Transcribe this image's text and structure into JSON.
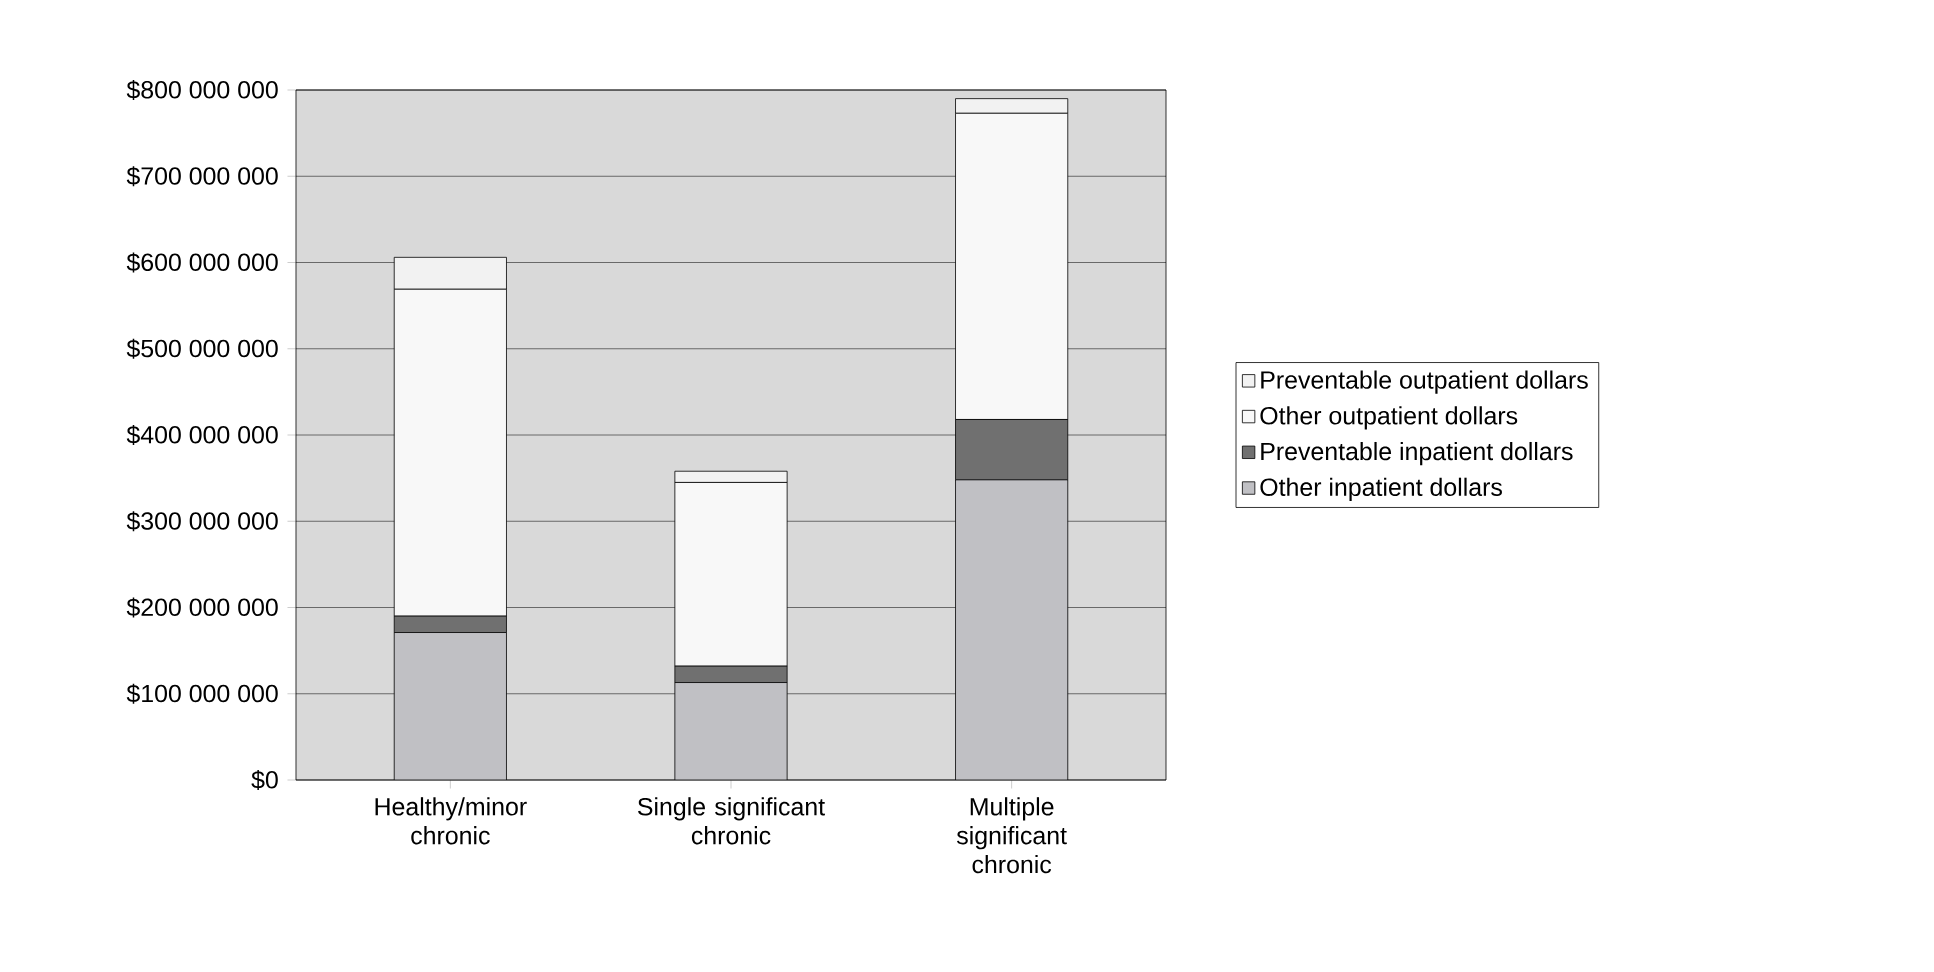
{
  "chart_data": {
    "type": "bar",
    "stacked": true,
    "grid": "y",
    "legend": "right",
    "categories": [
      "Healthy/minor chronic",
      "Single significant chronic",
      "Multiple significant chronic"
    ],
    "series": [
      {
        "name": "Other inpatient dollars",
        "color": "#c0c0c4",
        "values": [
          171000000,
          113000000,
          348000000
        ]
      },
      {
        "name": "Preventable inpatient dollars",
        "color": "#707070",
        "values": [
          19000000,
          19000000,
          70000000
        ]
      },
      {
        "name": "Other outpatient dollars",
        "color": "#f8f8f8",
        "values": [
          379000000,
          213000000,
          355000000
        ]
      },
      {
        "name": "Preventable outpatient dollars",
        "color": "#f2f2f2",
        "values": [
          37000000,
          13000000,
          17000000
        ]
      }
    ],
    "ylim": [
      0,
      800000000
    ],
    "yticks": [
      {
        "value": 0,
        "label": "$0"
      },
      {
        "value": 100000000,
        "label": "$100 000 000"
      },
      {
        "value": 200000000,
        "label": "$200 000 000"
      },
      {
        "value": 300000000,
        "label": "$300 000 000"
      },
      {
        "value": 400000000,
        "label": "$400 000 000"
      },
      {
        "value": 500000000,
        "label": "$500 000 000"
      },
      {
        "value": 600000000,
        "label": "$600 000 000"
      },
      {
        "value": 700000000,
        "label": "$700 000 000"
      },
      {
        "value": 800000000,
        "label": "$800 000 000"
      }
    ]
  }
}
